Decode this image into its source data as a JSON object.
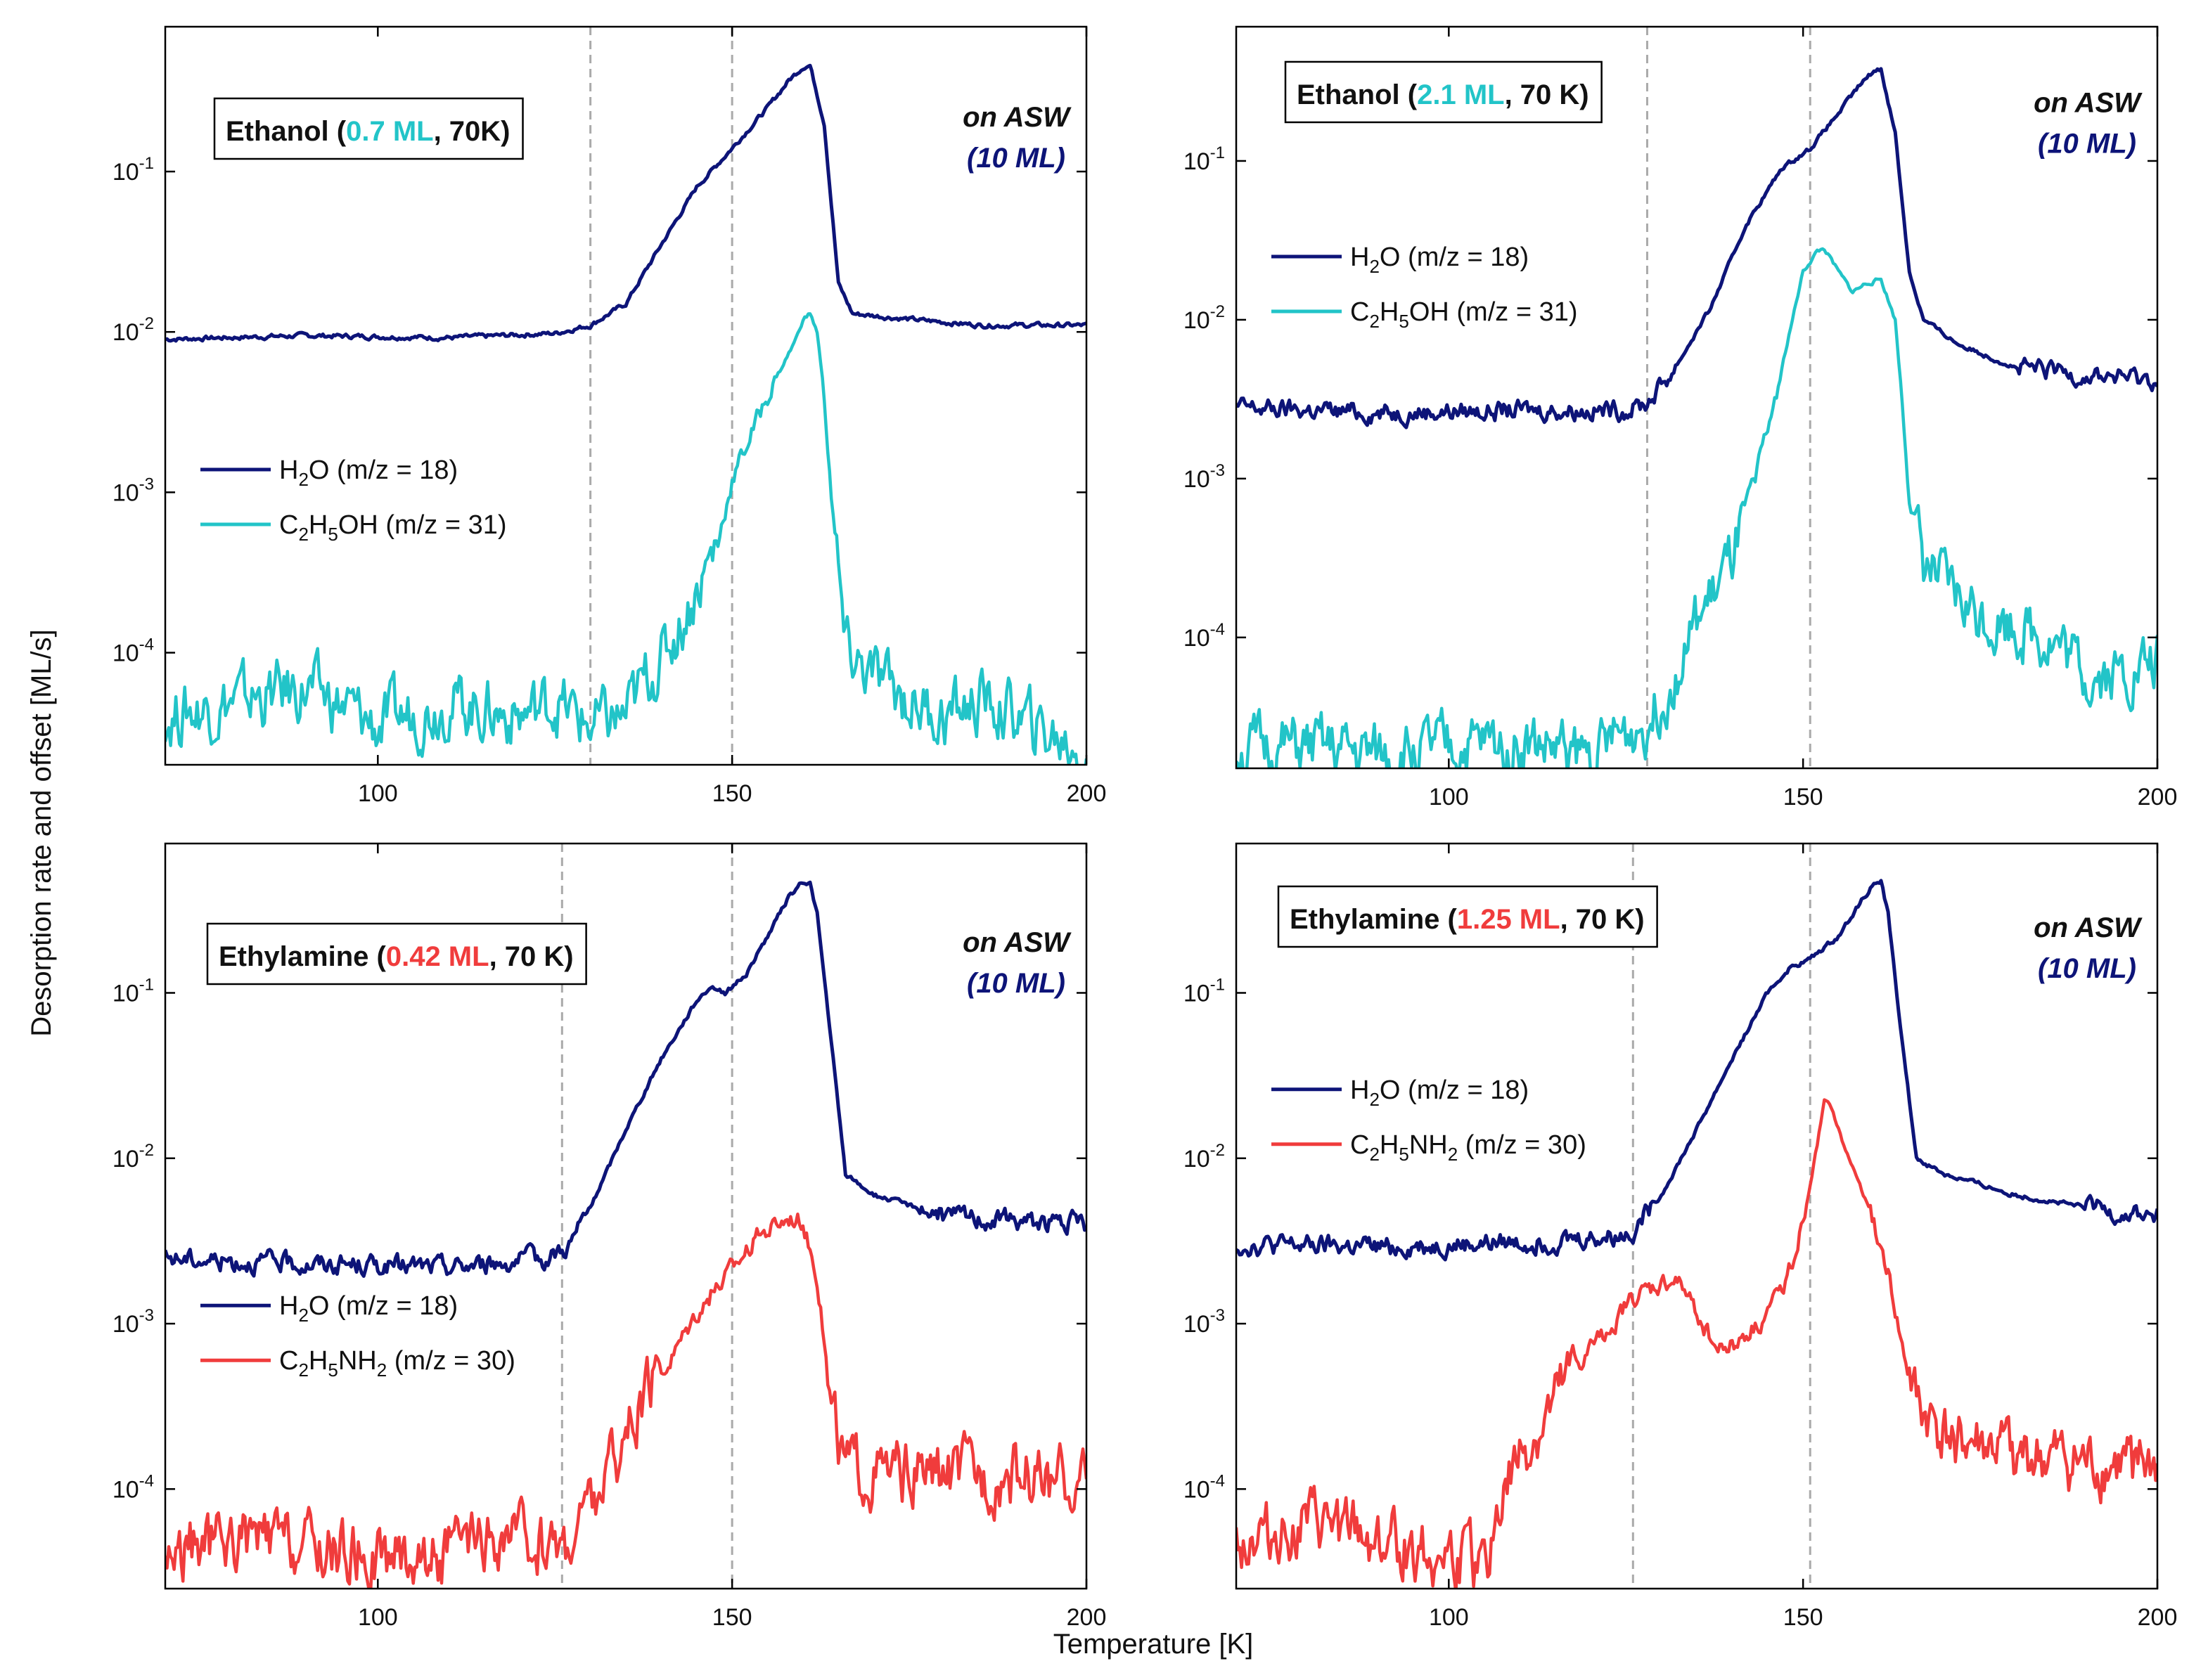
{
  "figure": {
    "shared_ylabel": "Desorption rate and offset [ML/s]",
    "shared_xlabel": "Temperature [K]",
    "on_asw_line1": "on ASW",
    "on_asw_line2_open": "(",
    "on_asw_line2_value": "10 ML",
    "on_asw_line2_close": ")",
    "colors": {
      "water": "#0d1478",
      "ethanol": "#22c4c8",
      "ethylamine": "#f03c3c",
      "dashed": "#aaaaaa",
      "asw": "#0d1478"
    }
  },
  "chart_data": [
    {
      "type": "line",
      "panel": "top-left",
      "title_prefix": "Ethanol (",
      "title_highlight": "0.7 ML",
      "title_suffix": ", 70K)",
      "highlight_color": "#22c4c8",
      "xlim": [
        70,
        200
      ],
      "ylim": [
        2e-05,
        0.8
      ],
      "yscale": "log",
      "x_ticks": [
        100,
        150,
        200
      ],
      "y_ticks": [
        0.0001,
        0.001,
        0.01,
        0.1
      ],
      "y_tick_mantissa": [
        "10",
        "10",
        "10",
        "10"
      ],
      "y_tick_exponent": [
        "-4",
        "-3",
        "-2",
        "-1"
      ],
      "dashed_x": [
        130,
        150
      ],
      "legend_position": "middle-left",
      "legend": {
        "water": {
          "pre": "H",
          "sub1": "2",
          "mid": "O (m/z = 18)",
          "sub2": "",
          "post": ""
        },
        "species": {
          "pre": "C",
          "sub1": "2",
          "mid": "H",
          "sub2": "5",
          "post": "OH (m/z = 31)"
        }
      },
      "series": [
        {
          "name": "H2O (m/z = 18)",
          "color": "#0d1478",
          "x": [
            70,
            90,
            110,
            125,
            130,
            135,
            140,
            145,
            150,
            155,
            158,
            160,
            161,
            163,
            165,
            167,
            175,
            185,
            200
          ],
          "y": [
            0.009,
            0.0095,
            0.0092,
            0.0098,
            0.011,
            0.015,
            0.035,
            0.08,
            0.14,
            0.25,
            0.37,
            0.45,
            0.46,
            0.2,
            0.02,
            0.013,
            0.012,
            0.011,
            0.011
          ]
        },
        {
          "name": "C2H5OH (m/z = 31)",
          "color": "#22c4c8",
          "x": [
            70,
            80,
            90,
            100,
            110,
            120,
            125,
            130,
            135,
            138,
            140,
            143,
            145,
            148,
            150,
            153,
            155,
            157,
            159,
            160,
            161,
            162,
            163,
            164,
            165,
            166,
            170,
            175,
            180,
            185,
            190,
            195,
            200
          ],
          "y": [
            4e-05,
            5e-05,
            6e-05,
            3.5e-05,
            5e-05,
            4e-05,
            5e-05,
            3.5e-05,
            4e-05,
            7e-05,
            9e-05,
            0.00016,
            0.00025,
            0.0005,
            0.0012,
            0.0025,
            0.004,
            0.006,
            0.009,
            0.012,
            0.013,
            0.01,
            0.004,
            0.001,
            0.0003,
            0.0001,
            7e-05,
            5e-05,
            4e-05,
            5e-05,
            4e-05,
            3e-05,
            2.5e-05
          ]
        }
      ]
    },
    {
      "type": "line",
      "panel": "top-right",
      "title_prefix": "Ethanol (",
      "title_highlight": "2.1 ML",
      "title_suffix": ", 70 K)",
      "highlight_color": "#22c4c8",
      "xlim": [
        70,
        200
      ],
      "ylim": [
        1.5e-05,
        0.7
      ],
      "yscale": "log",
      "x_ticks": [
        100,
        150,
        200
      ],
      "y_ticks": [
        0.0001,
        0.001,
        0.01,
        0.1
      ],
      "y_tick_mantissa": [
        "10",
        "10",
        "10",
        "10"
      ],
      "y_tick_exponent": [
        "-4",
        "-3",
        "-2",
        "-1"
      ],
      "dashed_x": [
        128,
        151
      ],
      "legend_position": "upper-left",
      "legend": {
        "water": {
          "pre": "H",
          "sub1": "2",
          "mid": "O (m/z = 18)",
          "sub2": "",
          "post": ""
        },
        "species": {
          "pre": "C",
          "sub1": "2",
          "mid": "H",
          "sub2": "5",
          "post": "OH (m/z = 31)"
        }
      },
      "series": [
        {
          "name": "H2O (m/z = 18)",
          "color": "#0d1478",
          "x": [
            70,
            90,
            110,
            125,
            128,
            132,
            137,
            142,
            147,
            151,
            155,
            158,
            160,
            161,
            163,
            165,
            167,
            172,
            180,
            190,
            200
          ],
          "y": [
            0.0028,
            0.0026,
            0.0027,
            0.0027,
            0.003,
            0.005,
            0.012,
            0.04,
            0.09,
            0.12,
            0.2,
            0.3,
            0.37,
            0.38,
            0.15,
            0.02,
            0.01,
            0.007,
            0.005,
            0.0045,
            0.0042
          ]
        },
        {
          "name": "C2H5OH (m/z = 31)",
          "color": "#22c4c8",
          "x": [
            70,
            80,
            90,
            100,
            110,
            120,
            125,
            128,
            131,
            135,
            140,
            145,
            148,
            150,
            152,
            153,
            155,
            157,
            159,
            161,
            163,
            164,
            165,
            167,
            170,
            175,
            180,
            185,
            190,
            195,
            200
          ],
          "y": [
            2e-05,
            2e-05,
            1.8e-05,
            2e-05,
            2.2e-05,
            1.8e-05,
            2.5e-05,
            3e-05,
            5e-05,
            0.00012,
            0.0003,
            0.002,
            0.008,
            0.02,
            0.027,
            0.028,
            0.02,
            0.015,
            0.017,
            0.018,
            0.01,
            0.003,
            0.0008,
            0.0003,
            0.0002,
            0.00014,
            0.00012,
            0.0001,
            6e-05,
            6e-05,
            7e-05
          ]
        }
      ]
    },
    {
      "type": "line",
      "panel": "bottom-left",
      "title_prefix": "Ethylamine (",
      "title_highlight": "0.42 ML",
      "title_suffix": ", 70 K)",
      "highlight_color": "#f03c3c",
      "xlim": [
        70,
        200
      ],
      "ylim": [
        2.5e-05,
        0.8
      ],
      "yscale": "log",
      "x_ticks": [
        100,
        150,
        200
      ],
      "y_ticks": [
        0.0001,
        0.001,
        0.01,
        0.1
      ],
      "y_tick_mantissa": [
        "10",
        "10",
        "10",
        "10"
      ],
      "y_tick_exponent": [
        "-4",
        "-3",
        "-2",
        "-1"
      ],
      "dashed_x": [
        126,
        150
      ],
      "legend_position": "lower-left",
      "legend": {
        "water": {
          "pre": "H",
          "sub1": "2",
          "mid": "O (m/z = 18)",
          "sub2": "",
          "post": ""
        },
        "species": {
          "pre": "C",
          "sub1": "2",
          "mid": "H",
          "sub2": "5",
          "post": "NH",
          "sub3": "2",
          "post2": " (m/z = 30)"
        }
      },
      "series": [
        {
          "name": "H2O (m/z = 18)",
          "color": "#0d1478",
          "x": [
            70,
            90,
            110,
            124,
            127,
            130,
            135,
            140,
            145,
            147,
            149,
            152,
            155,
            158,
            160,
            161,
            162,
            164,
            166,
            170,
            180,
            190,
            200
          ],
          "y": [
            0.0025,
            0.0023,
            0.0022,
            0.0025,
            0.003,
            0.005,
            0.015,
            0.04,
            0.09,
            0.11,
            0.1,
            0.13,
            0.22,
            0.38,
            0.47,
            0.46,
            0.3,
            0.05,
            0.008,
            0.006,
            0.0045,
            0.0042,
            0.004
          ]
        },
        {
          "name": "C2H5NH2 (m/z = 30)",
          "color": "#f03c3c",
          "x": [
            70,
            80,
            90,
            100,
            110,
            120,
            126,
            130,
            135,
            140,
            145,
            148,
            150,
            153,
            156,
            158,
            160,
            162,
            164,
            166,
            170,
            180,
            190,
            200
          ],
          "y": [
            4e-05,
            5e-05,
            4.5e-05,
            4e-05,
            4e-05,
            5e-05,
            4.5e-05,
            8e-05,
            0.0002,
            0.0005,
            0.0012,
            0.0017,
            0.0022,
            0.0032,
            0.004,
            0.0045,
            0.0043,
            0.002,
            0.0003,
            0.00014,
            0.00012,
            0.00012,
            0.00012,
            0.00011
          ]
        }
      ]
    },
    {
      "type": "line",
      "panel": "bottom-right",
      "title_prefix": "Ethylamine (",
      "title_highlight": "1.25 ML",
      "title_suffix": ", 70 K)",
      "highlight_color": "#f03c3c",
      "xlim": [
        70,
        200
      ],
      "ylim": [
        2.5e-05,
        0.8
      ],
      "yscale": "log",
      "x_ticks": [
        100,
        150,
        200
      ],
      "y_ticks": [
        0.0001,
        0.001,
        0.01,
        0.1
      ],
      "y_tick_mantissa": [
        "10",
        "10",
        "10",
        "10"
      ],
      "y_tick_exponent": [
        "-4",
        "-3",
        "-2",
        "-1"
      ],
      "dashed_x": [
        126,
        151
      ],
      "legend_position": "upper-left",
      "legend": {
        "water": {
          "pre": "H",
          "sub1": "2",
          "mid": "O (m/z = 18)",
          "sub2": "",
          "post": ""
        },
        "species": {
          "pre": "C",
          "sub1": "2",
          "mid": "H",
          "sub2": "5",
          "post": "NH",
          "sub3": "2",
          "post2": " (m/z = 30)"
        }
      },
      "series": [
        {
          "name": "H2O (m/z = 18)",
          "color": "#0d1478",
          "x": [
            70,
            90,
            110,
            124,
            126,
            130,
            135,
            140,
            145,
            148,
            151,
            155,
            158,
            160,
            161,
            162,
            164,
            166,
            170,
            180,
            190,
            200
          ],
          "y": [
            0.003,
            0.0029,
            0.0031,
            0.0034,
            0.0037,
            0.006,
            0.015,
            0.04,
            0.1,
            0.14,
            0.16,
            0.22,
            0.35,
            0.46,
            0.47,
            0.3,
            0.05,
            0.01,
            0.008,
            0.006,
            0.005,
            0.0044
          ]
        },
        {
          "name": "C2H5NH2 (m/z = 30)",
          "color": "#f03c3c",
          "x": [
            70,
            80,
            90,
            100,
            105,
            107,
            110,
            115,
            120,
            126,
            130,
            132,
            135,
            138,
            141,
            144,
            147,
            150,
            152,
            153,
            154,
            156,
            158,
            160,
            162,
            164,
            166,
            170,
            180,
            190,
            200
          ],
          "y": [
            5e-05,
            6e-05,
            5e-05,
            4e-05,
            3e-05,
            8e-05,
            0.00015,
            0.0003,
            0.0007,
            0.0014,
            0.0017,
            0.0018,
            0.0012,
            0.0007,
            0.0008,
            0.001,
            0.0016,
            0.004,
            0.012,
            0.022,
            0.02,
            0.011,
            0.007,
            0.004,
            0.002,
            0.0007,
            0.0003,
            0.0002,
            0.00015,
            0.00013,
            0.00013
          ]
        }
      ]
    }
  ]
}
